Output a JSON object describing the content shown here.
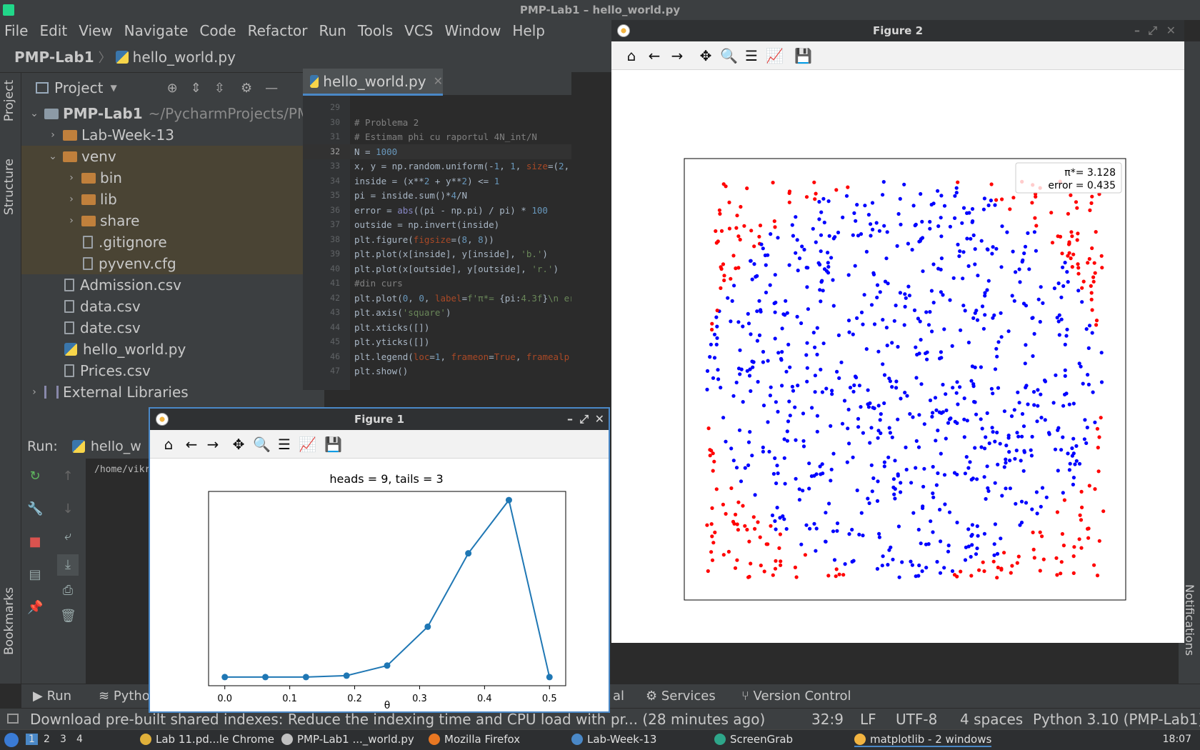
{
  "window_title": "PMP-Lab1 – hello_world.py",
  "menu": [
    "File",
    "Edit",
    "View",
    "Navigate",
    "Code",
    "Refactor",
    "Run",
    "Tools",
    "VCS",
    "Window",
    "Help"
  ],
  "breadcrumb": {
    "project": "PMP-Lab1",
    "file": "hello_world.py"
  },
  "left_strip": {
    "project": "Project",
    "structure": "Structure",
    "bookmarks": "Bookmarks"
  },
  "project_panel": {
    "title": "Project",
    "tree": [
      {
        "label": "PMP-Lab1",
        "extra": "~/PycharmProjects/PMP",
        "type": "root"
      },
      {
        "label": "Lab-Week-13",
        "type": "folder"
      },
      {
        "label": "venv",
        "type": "folder-open"
      },
      {
        "label": "bin",
        "type": "folder"
      },
      {
        "label": "lib",
        "type": "folder"
      },
      {
        "label": "share",
        "type": "folder"
      },
      {
        "label": ".gitignore",
        "type": "file"
      },
      {
        "label": "pyvenv.cfg",
        "type": "file"
      },
      {
        "label": "Admission.csv",
        "type": "file"
      },
      {
        "label": "data.csv",
        "type": "file"
      },
      {
        "label": "date.csv",
        "type": "file"
      },
      {
        "label": "hello_world.py",
        "type": "py"
      },
      {
        "label": "Prices.csv",
        "type": "file"
      },
      {
        "label": "External Libraries",
        "type": "lib"
      }
    ]
  },
  "editor": {
    "tab_label": "hello_world.py",
    "current_line": 32,
    "lines": [
      {
        "n": 29,
        "html": ""
      },
      {
        "n": 30,
        "html": "<span class=\"cmt\"># Problema 2</span>"
      },
      {
        "n": 31,
        "html": "<span class=\"cmt\"># Estimam phi cu raportul 4N_int/N</span>"
      },
      {
        "n": 32,
        "html": "N = <span class=\"num\">1000</span>"
      },
      {
        "n": 33,
        "html": "x, y = np.random.uniform(-<span class=\"num\">1</span>, <span class=\"num\">1</span>, <span class=\"kw\">size</span>=(<span class=\"num\">2</span>,"
      },
      {
        "n": 34,
        "html": "inside = (x**<span class=\"num\">2</span> + y**<span class=\"num\">2</span>) &lt;= <span class=\"num\">1</span>"
      },
      {
        "n": 35,
        "html": "pi = inside.sum()*<span class=\"num\">4</span>/N"
      },
      {
        "n": 36,
        "html": "error = <span class=\"bi\">abs</span>((pi - np.pi) / pi) * <span class=\"num\">100</span>"
      },
      {
        "n": 37,
        "html": "outside = np.invert(inside)"
      },
      {
        "n": 38,
        "html": "plt.figure(<span class=\"kw\">figsize</span>=(<span class=\"num\">8</span>, <span class=\"num\">8</span>))"
      },
      {
        "n": 39,
        "html": "plt.plot(x[inside], y[inside], <span class=\"str\">'b.'</span>)"
      },
      {
        "n": 40,
        "html": "plt.plot(x[outside], y[outside], <span class=\"str\">'r.'</span>)"
      },
      {
        "n": 41,
        "html": "<span class=\"cmt\">#din curs</span>"
      },
      {
        "n": 42,
        "html": "plt.plot(<span class=\"num\">0</span>, <span class=\"num\">0</span>, <span class=\"kw\">label</span>=<span class=\"str\">f'π*= </span>{pi:<span class=\"str\">4.3f</span>}<span class=\"str\">\\n er</span>"
      },
      {
        "n": 43,
        "html": "plt.axis(<span class=\"str\">'square'</span>)"
      },
      {
        "n": 44,
        "html": "plt.xticks([])"
      },
      {
        "n": 45,
        "html": "plt.yticks([])"
      },
      {
        "n": 46,
        "html": "plt.legend(<span class=\"kw\">loc</span>=<span class=\"num\">1</span>, <span class=\"kw\">frameon</span>=<span class=\"kw\">True</span>, <span class=\"kw\">framealp</span>"
      },
      {
        "n": 47,
        "html": "plt.show()"
      }
    ]
  },
  "run_panel": {
    "label": "Run:",
    "tab": "hello_w",
    "console_line": "/home/vikr"
  },
  "bottom_tabs": {
    "run": "Run",
    "python": "Pytho",
    "terminal_tail": "al",
    "services": "Services",
    "vcs": "Version Control"
  },
  "status": {
    "message": "Download pre-built shared indexes: Reduce the indexing time and CPU load with pr... (28 minutes ago)",
    "position": "32:9",
    "line_sep": "LF",
    "encoding": "UTF-8",
    "indent": "4 spaces",
    "interpreter": "Python 3.10 (PMP-Lab1)"
  },
  "right_strip": {
    "notifications": "Notifications"
  },
  "taskbar": {
    "workspaces": [
      "1",
      "2",
      "3",
      "4"
    ],
    "items": [
      "Lab 11.pd...le Chrome",
      "PMP-Lab1 ..._world.py",
      "Mozilla Firefox",
      "Lab-Week-13",
      "ScreenGrab",
      "matplotlib - 2 windows"
    ],
    "clock": "18:07"
  },
  "colors": {
    "inside": "#0000ff",
    "outside": "#ff0000",
    "line": "#1f77b4"
  },
  "figure2": {
    "title": "Figure 2",
    "legend_pi": "π*= 3.128",
    "legend_err": "error = 0.435"
  },
  "figure1": {
    "title": "Figure 1",
    "xlabel": "θ"
  },
  "chart_data": [
    {
      "type": "line",
      "title": "heads = 9, tails = 3",
      "xlabel": "θ",
      "ylabel": "",
      "x": [
        0.0,
        0.0625,
        0.125,
        0.1875,
        0.25,
        0.3125,
        0.375,
        0.4375,
        0.5
      ],
      "values": [
        0.0,
        0.0,
        0.0,
        0.003,
        0.024,
        0.105,
        0.258,
        0.369,
        0.0
      ],
      "xticks": [
        "0.0",
        "0.1",
        "0.2",
        "0.3",
        "0.4",
        "0.5"
      ],
      "xlim": [
        -0.025,
        0.525
      ],
      "ylim": [
        -0.018,
        0.387
      ],
      "yticks_visible": false,
      "marker": "o",
      "grid": false
    },
    {
      "type": "scatter",
      "title": "",
      "series": [
        {
          "name": "inside",
          "color": "blue",
          "count": 782
        },
        {
          "name": "outside",
          "color": "red",
          "count": 218
        }
      ],
      "xlim": [
        -1,
        1
      ],
      "ylim": [
        -1,
        1
      ],
      "axis": "square",
      "xticks_visible": false,
      "yticks_visible": false,
      "legend": {
        "placement": "top-right",
        "entries": [
          "π*= 3.128",
          "error = 0.435"
        ]
      }
    }
  ]
}
